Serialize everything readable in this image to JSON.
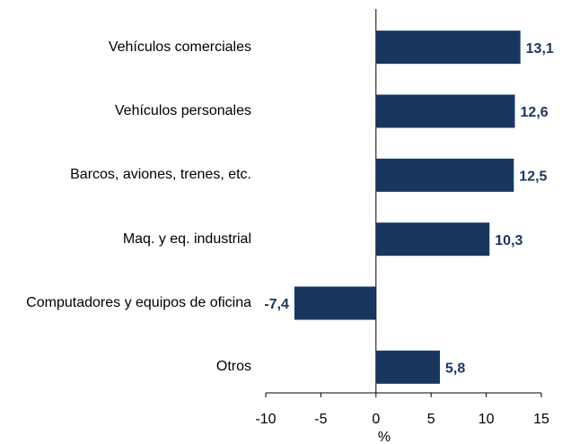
{
  "chart_data": {
    "type": "barh",
    "categories": [
      "Vehículos comerciales",
      "Vehículos personales",
      "Barcos, aviones, trenes, etc.",
      "Maq. y eq. industrial",
      "Computadores y equipos de oficina",
      "Otros"
    ],
    "values": [
      13.1,
      12.6,
      12.5,
      10.3,
      -7.4,
      5.8
    ],
    "value_labels": [
      "13,1",
      "12,6",
      "12,5",
      "10,3",
      "-7,4",
      "5,8"
    ],
    "color": "#17375e",
    "xlabel": "%",
    "xlim": [
      -10,
      15
    ],
    "xticks": [
      -10,
      -5,
      0,
      5,
      10,
      15
    ]
  }
}
